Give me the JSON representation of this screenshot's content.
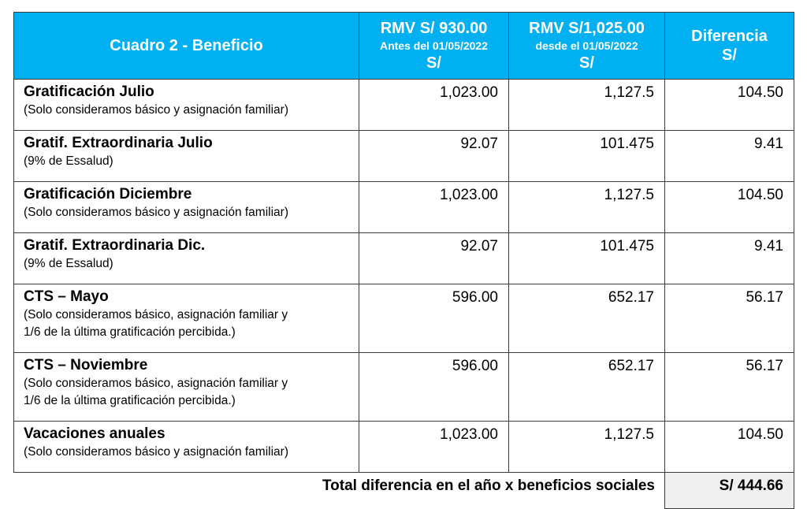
{
  "header": {
    "col0": "Cuadro 2 - Beneficio",
    "col1": {
      "title": "RMV S/ 930.00",
      "sub": "Antes del 01/05/2022",
      "unit": "S/"
    },
    "col2": {
      "title": "RMV S/1,025.00",
      "sub": "desde el 01/05/2022",
      "unit": "S/"
    },
    "col3": {
      "title": "Diferencia",
      "unit": "S/"
    }
  },
  "rows": [
    {
      "title": "Gratificación Julio",
      "note": "(Solo consideramos básico y asignación familiar)",
      "note2": "",
      "before": "1,023.00",
      "after": "1,127.5",
      "diff": "104.50"
    },
    {
      "title": "Gratif. Extraordinaria Julio",
      "note": "(9% de Essalud)",
      "note2": "",
      "before": "92.07",
      "after": "101.475",
      "diff": "9.41"
    },
    {
      "title": "Gratificación Diciembre",
      "note": "(Solo consideramos básico y asignación familiar)",
      "note2": "",
      "before": "1,023.00",
      "after": "1,127.5",
      "diff": "104.50"
    },
    {
      "title": "Gratif. Extraordinaria Dic.",
      "note": "(9% de Essalud)",
      "note2": "",
      "before": "92.07",
      "after": "101.475",
      "diff": "9.41"
    },
    {
      "title": "CTS – Mayo",
      "note": "(Solo consideramos básico, asignación familiar y",
      "note2": "1/6 de la última gratificación percibida.)",
      "before": "596.00",
      "after": "652.17",
      "diff": "56.17"
    },
    {
      "title": "CTS – Noviembre",
      "note": "(Solo consideramos básico, asignación familiar y",
      "note2": "1/6 de la última gratificación percibida.)",
      "before": "596.00",
      "after": "652.17",
      "diff": "56.17"
    },
    {
      "title": "Vacaciones anuales",
      "note": "(Solo consideramos básico y asignación familiar)",
      "note2": "",
      "before": "1,023.00",
      "after": "1,127.5",
      "diff": "104.50"
    }
  ],
  "total": {
    "label": "Total diferencia en el año x beneficios sociales",
    "value": "S/ 444.66"
  },
  "colors": {
    "header_bg": "#00B0F0",
    "total_bg": "#EFEFEF"
  }
}
